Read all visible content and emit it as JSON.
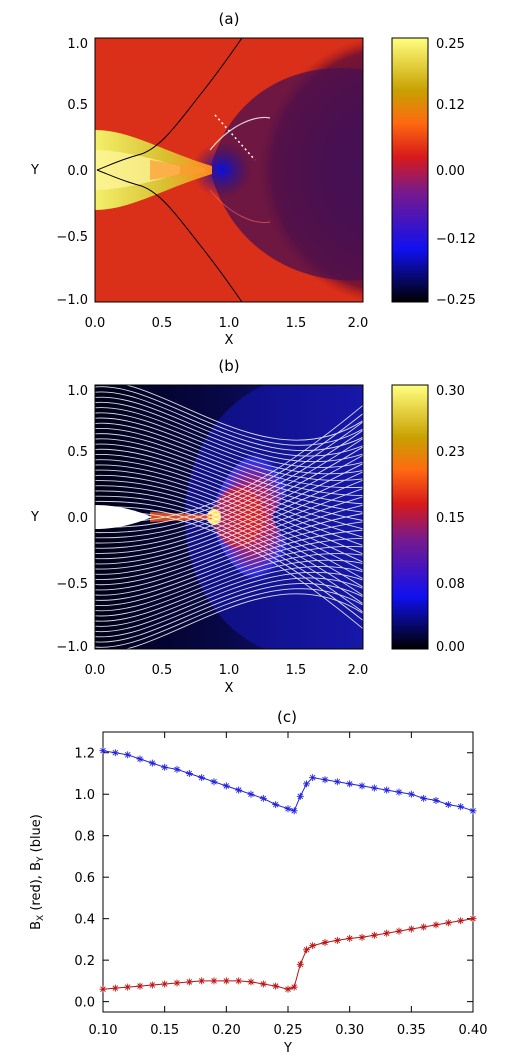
{
  "figure": {
    "panels": [
      {
        "id": "a",
        "title": "(a)",
        "type": "heatmap",
        "xlabel": "X",
        "ylabel": "Y",
        "xlim": [
          0.0,
          2.0
        ],
        "ylim": [
          -1.0,
          1.0
        ],
        "xticks": [
          "0.0",
          "0.5",
          "1.0",
          "1.5",
          "2.0"
        ],
        "yticks": [
          "1.0",
          "0.5",
          "0.0",
          "−0.5",
          "−1.0"
        ],
        "colorbar": {
          "range": [
            -0.25,
            0.25
          ],
          "ticks": [
            "0.25",
            "0.12",
            "0.00",
            "−0.12",
            "−0.25"
          ],
          "colormap": "black-blue-purple-red-orange-yellow"
        },
        "overlay": "black curves from (0,0) splaying out to (1.0,±1.0); white dotted line from (0.82,0.42) to (1.2,0.08)"
      },
      {
        "id": "b",
        "title": "(b)",
        "type": "heatmap",
        "xlabel": "X",
        "ylabel": "Y",
        "xlim": [
          0.0,
          2.0
        ],
        "ylim": [
          -1.0,
          1.0
        ],
        "xticks": [
          "0.0",
          "0.5",
          "1.0",
          "1.5",
          "2.0"
        ],
        "yticks": [
          "1.0",
          "0.5",
          "0.0",
          "−0.5",
          "−1.0"
        ],
        "colorbar": {
          "range": [
            0.0,
            0.3
          ],
          "ticks": [
            "0.30",
            "0.23",
            "0.15",
            "0.08",
            "0.00"
          ],
          "colormap": "black-blue-purple-red-orange-yellow"
        },
        "overlay": "white field lines"
      }
    ]
  },
  "chart_data": {
    "type": "line",
    "title": "(c)",
    "xlabel": "Y",
    "ylabel_parts": [
      "B",
      "X",
      " (red), B",
      "Y",
      " (blue)"
    ],
    "xlim": [
      0.1,
      0.4
    ],
    "ylim": [
      -0.05,
      1.3
    ],
    "xticks": [
      "0.10",
      "0.15",
      "0.20",
      "0.25",
      "0.30",
      "0.35",
      "0.40"
    ],
    "yticks": [
      "0.0",
      "0.2",
      "0.4",
      "0.6",
      "0.8",
      "1.0",
      "1.2"
    ],
    "marker": "asterisk",
    "series": [
      {
        "color": "#2222dd",
        "x": [
          0.1,
          0.11,
          0.12,
          0.13,
          0.14,
          0.15,
          0.16,
          0.17,
          0.18,
          0.19,
          0.2,
          0.21,
          0.22,
          0.23,
          0.24,
          0.25,
          0.255,
          0.26,
          0.265,
          0.27,
          0.28,
          0.29,
          0.3,
          0.31,
          0.32,
          0.33,
          0.34,
          0.35,
          0.36,
          0.37,
          0.38,
          0.39,
          0.4
        ],
        "y": [
          1.21,
          1.2,
          1.19,
          1.17,
          1.15,
          1.13,
          1.12,
          1.1,
          1.08,
          1.06,
          1.04,
          1.02,
          1.0,
          0.98,
          0.95,
          0.93,
          0.92,
          0.99,
          1.05,
          1.08,
          1.07,
          1.06,
          1.05,
          1.04,
          1.03,
          1.02,
          1.01,
          1.0,
          0.98,
          0.97,
          0.95,
          0.94,
          0.92
        ]
      },
      {
        "color": "#bb1111",
        "x": [
          0.1,
          0.11,
          0.12,
          0.13,
          0.14,
          0.15,
          0.16,
          0.17,
          0.18,
          0.19,
          0.2,
          0.21,
          0.22,
          0.23,
          0.24,
          0.25,
          0.255,
          0.26,
          0.265,
          0.27,
          0.28,
          0.29,
          0.3,
          0.31,
          0.32,
          0.33,
          0.34,
          0.35,
          0.36,
          0.37,
          0.38,
          0.39,
          0.4
        ],
        "y": [
          0.06,
          0.065,
          0.07,
          0.075,
          0.08,
          0.085,
          0.09,
          0.095,
          0.1,
          0.1,
          0.1,
          0.1,
          0.095,
          0.085,
          0.075,
          0.06,
          0.07,
          0.18,
          0.25,
          0.27,
          0.285,
          0.295,
          0.305,
          0.31,
          0.32,
          0.33,
          0.34,
          0.35,
          0.36,
          0.37,
          0.38,
          0.39,
          0.4
        ]
      }
    ]
  }
}
